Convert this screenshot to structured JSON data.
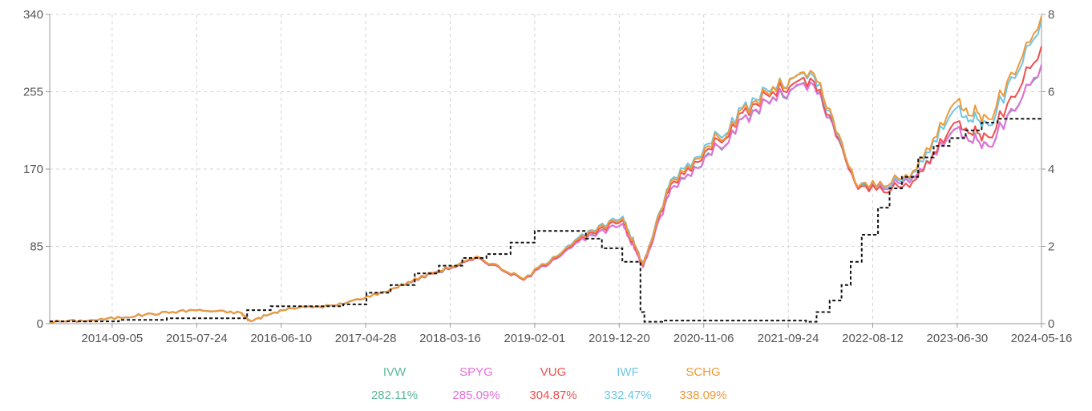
{
  "chart_data": {
    "type": "line",
    "title": "",
    "xlabel": "",
    "ylabel": "",
    "x_ticks": [
      "2014-09-05",
      "2015-07-24",
      "2016-06-10",
      "2017-04-28",
      "2018-03-16",
      "2019-02-01",
      "2019-12-20",
      "2020-11-06",
      "2021-09-24",
      "2022-08-12",
      "2023-06-30",
      "2024-05-16"
    ],
    "x_range": [
      "2014-01-10",
      "2024-05-16"
    ],
    "y_left": {
      "ticks": [
        "0",
        "85",
        "170",
        "255",
        "340"
      ],
      "range": [
        0,
        340
      ]
    },
    "y_right": {
      "ticks": [
        "0",
        "2",
        "4",
        "6",
        "8"
      ],
      "range": [
        0,
        8
      ]
    },
    "grid": true,
    "legend_position": "bottom-center",
    "x": [
      "2014-01-10",
      "2014-07-11",
      "2015-01-09",
      "2015-07-10",
      "2016-01-08",
      "2016-02-12",
      "2016-07-08",
      "2017-01-06",
      "2017-07-07",
      "2018-01-05",
      "2018-07-06",
      "2018-12-21",
      "2019-07-05",
      "2020-01-03",
      "2020-03-20",
      "2020-07-03",
      "2021-01-01",
      "2021-07-02",
      "2021-12-31",
      "2022-06-17",
      "2022-12-30",
      "2023-06-30",
      "2023-10-27",
      "2024-05-16"
    ],
    "series": [
      {
        "name": "IVW",
        "return_label": "282.11%",
        "color": "#5bb89a",
        "axis": "left",
        "values": [
          2,
          4,
          10,
          15,
          12,
          3,
          17,
          20,
          35,
          55,
          72,
          48,
          88,
          110,
          62,
          148,
          195,
          245,
          262,
          150,
          155,
          215,
          195,
          283
        ]
      },
      {
        "name": "SPYG",
        "return_label": "285.09%",
        "color": "#e56fdb",
        "axis": "left",
        "values": [
          2,
          4,
          10,
          15,
          12,
          3,
          17,
          20,
          35,
          55,
          72,
          48,
          88,
          110,
          62,
          148,
          195,
          245,
          262,
          150,
          155,
          215,
          195,
          285
        ]
      },
      {
        "name": "VUG",
        "return_label": "304.87%",
        "color": "#ef4f4f",
        "axis": "left",
        "values": [
          2,
          4,
          10,
          15,
          12,
          3,
          17,
          20,
          35,
          55,
          72,
          48,
          90,
          114,
          64,
          153,
          202,
          252,
          266,
          148,
          150,
          222,
          205,
          305
        ]
      },
      {
        "name": "IWF",
        "return_label": "332.47%",
        "color": "#6ec6e6",
        "axis": "left",
        "values": [
          2,
          4,
          10,
          15,
          12,
          3,
          17,
          20,
          35,
          56,
          73,
          49,
          92,
          118,
          66,
          158,
          208,
          258,
          272,
          150,
          158,
          238,
          218,
          333
        ]
      },
      {
        "name": "SCHG",
        "return_label": "338.09%",
        "color": "#ef9a3a",
        "axis": "left",
        "values": [
          2,
          4,
          10,
          15,
          12,
          3,
          17,
          20,
          35,
          56,
          73,
          49,
          91,
          116,
          65,
          156,
          205,
          255,
          275,
          150,
          160,
          245,
          225,
          338
        ]
      }
    ],
    "dashed_series": {
      "axis": "right",
      "color": "#111111",
      "steps": [
        [
          "2014-01-10",
          0.06
        ],
        [
          "2014-10-01",
          0.1
        ],
        [
          "2015-04-01",
          0.14
        ],
        [
          "2016-02-01",
          0.35
        ],
        [
          "2016-05-01",
          0.45
        ],
        [
          "2016-08-01",
          0.45
        ],
        [
          "2017-02-01",
          0.5
        ],
        [
          "2017-05-01",
          0.8
        ],
        [
          "2017-08-01",
          1.0
        ],
        [
          "2017-11-01",
          1.3
        ],
        [
          "2018-02-01",
          1.5
        ],
        [
          "2018-05-01",
          1.7
        ],
        [
          "2018-08-01",
          1.8
        ],
        [
          "2018-11-01",
          2.1
        ],
        [
          "2019-02-01",
          2.4
        ],
        [
          "2019-08-15",
          2.2
        ],
        [
          "2019-10-15",
          1.95
        ],
        [
          "2020-01-01",
          1.6
        ],
        [
          "2020-03-10",
          0.3
        ],
        [
          "2020-03-25",
          0.05
        ],
        [
          "2020-06-01",
          0.08
        ],
        [
          "2021-01-01",
          0.08
        ],
        [
          "2021-12-01",
          0.05
        ],
        [
          "2022-01-10",
          0.3
        ],
        [
          "2022-03-01",
          0.6
        ],
        [
          "2022-04-15",
          1.0
        ],
        [
          "2022-05-20",
          1.6
        ],
        [
          "2022-07-01",
          2.3
        ],
        [
          "2022-09-01",
          3.0
        ],
        [
          "2022-10-15",
          3.5
        ],
        [
          "2022-12-01",
          3.8
        ],
        [
          "2023-02-01",
          4.3
        ],
        [
          "2023-04-01",
          4.6
        ],
        [
          "2023-06-01",
          4.8
        ],
        [
          "2023-08-01",
          5.0
        ],
        [
          "2023-10-01",
          5.2
        ],
        [
          "2023-12-01",
          5.3
        ],
        [
          "2024-05-16",
          5.3
        ]
      ]
    }
  }
}
